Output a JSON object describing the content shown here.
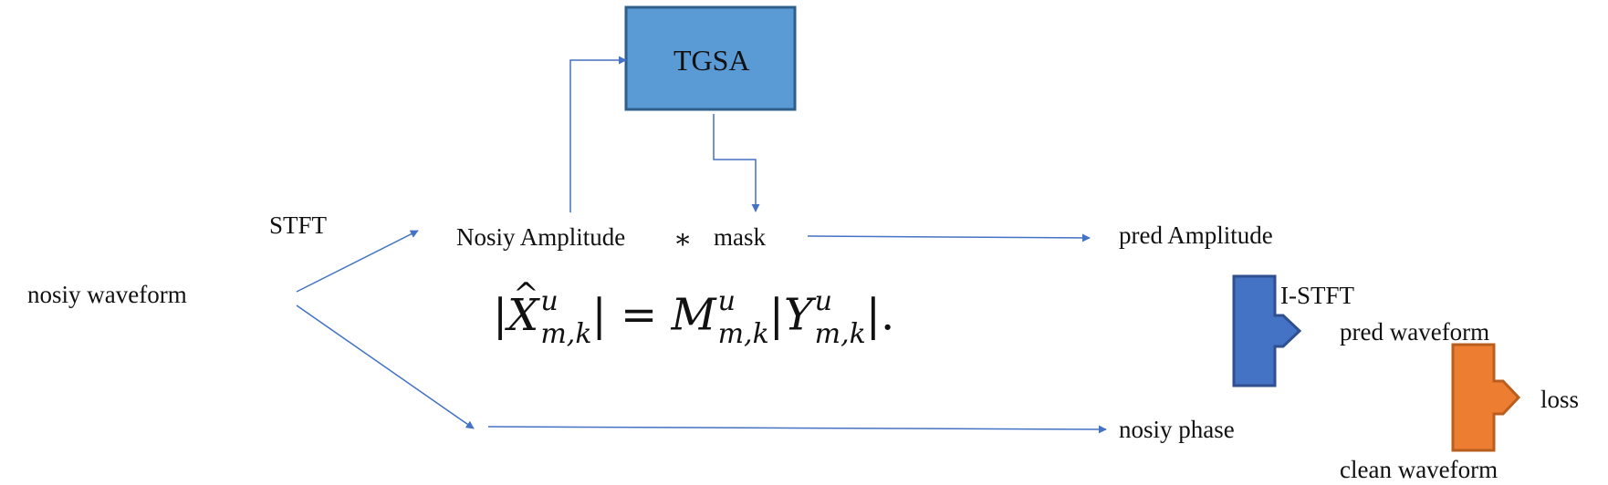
{
  "nodes": {
    "tgsa": "TGSA",
    "stft": "STFT",
    "noisy_waveform": "nosiy waveform",
    "noisy_amplitude": "Nosiy Amplitude",
    "multiply_op": "∗",
    "mask": "mask",
    "pred_amplitude": "pred Amplitude",
    "istft": "I-STFT",
    "pred_waveform": "pred waveform",
    "loss": "loss",
    "noisy_phase": "nosiy phase",
    "clean_waveform": "clean waveform"
  },
  "equation": {
    "lhs_symbol": "X",
    "lhs_accent": "^",
    "sup": "u",
    "sub": "m,k",
    "equals": "=",
    "mask_symbol": "M",
    "rhs_symbol": "Y",
    "trailing": "."
  },
  "colors": {
    "tgsa_fill": "#5b9bd5",
    "tgsa_border": "#2e5f8a",
    "istft_fill": "#4472c4",
    "istft_border": "#2f4f8f",
    "loss_fill": "#ed7d31",
    "loss_border": "#b85f1f",
    "arrow": "#4472c4"
  }
}
